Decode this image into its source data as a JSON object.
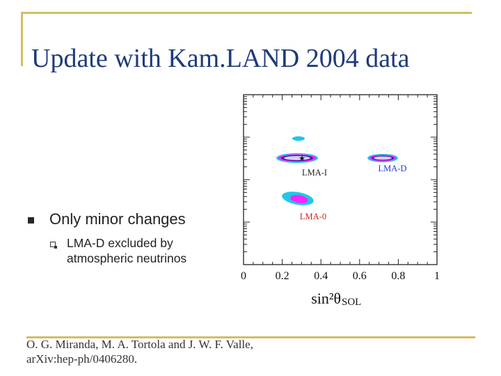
{
  "slide": {
    "title": "Update with Kam.LAND 2004 data",
    "bullet_1": "Only minor changes",
    "bullet_2": "LMA-D excluded by atmospheric neutrinos",
    "citation_line_1": "O. G. Miranda, M. A. Tortola and J. W. F. Valle,",
    "citation_line_2": "arXiv:hep-ph/0406280."
  },
  "chart_data": {
    "type": "contour",
    "xlabel": "sin²θ",
    "xlabel_sub": "SOL",
    "xlim": [
      0,
      1
    ],
    "x_ticks": [
      "0",
      "0.2",
      "0.4",
      "0.6",
      "0.8",
      "1"
    ],
    "region_labels": [
      {
        "name": "LMA-I",
        "x": 0.3,
        "color": "#222222"
      },
      {
        "name": "LMA-D",
        "x": 0.7,
        "color": "#1f3fcc"
      },
      {
        "name": "LMA-0",
        "x": 0.3,
        "color": "#d02020"
      }
    ],
    "best_fit_marker": "★",
    "colors": {
      "outer": "#1ec8e6",
      "middle": "#ff22ff",
      "inner": "#3a14a8",
      "core": "#d8cfe6"
    }
  }
}
